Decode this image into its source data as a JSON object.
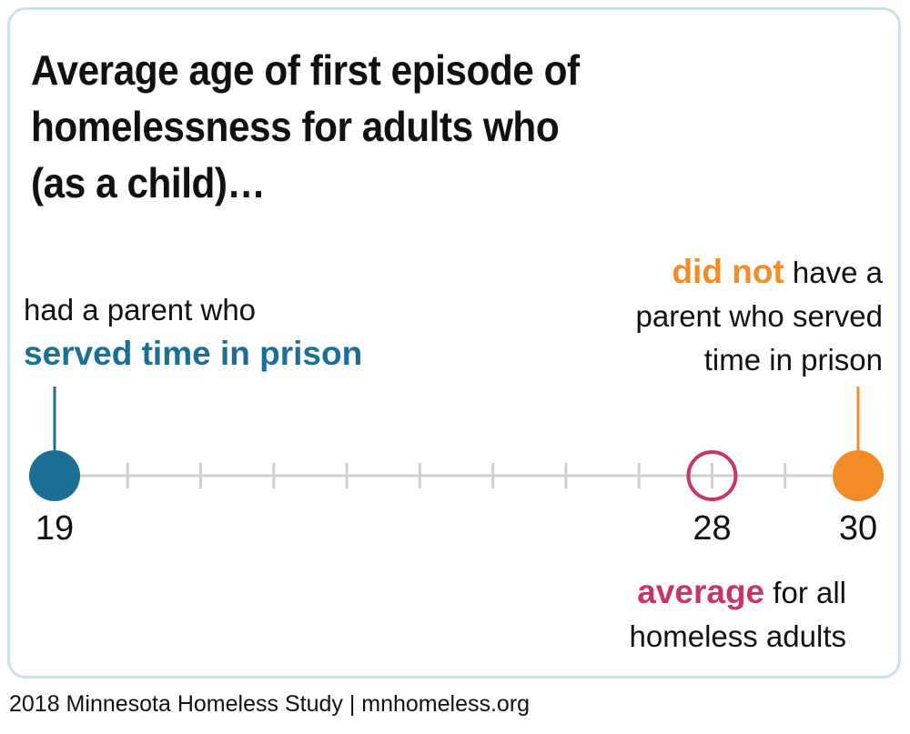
{
  "title_lines": [
    "Average age of first episode of",
    "homelessness for adults who",
    "(as a child)…"
  ],
  "labels": {
    "left_plain": "had a parent who",
    "left_emph": "served time in prison",
    "right_emph": "did not",
    "right_line1_rest": " have a",
    "right_line2": "parent who served",
    "right_line3": "time in prison",
    "avg_emph": "average",
    "avg_line1_rest": " for all",
    "avg_line2": "homeless adults"
  },
  "footer": "2018 Minnesota Homeless Study | mnhomeless.org",
  "colors": {
    "prison": "#1b6f94",
    "no_prison": "#f28c28",
    "average": "#c8356a",
    "axis": "#d0d0d0"
  },
  "chart_data": {
    "type": "scatter",
    "title": "Average age of first episode of homelessness for adults who (as a child)…",
    "xlim": [
      19,
      30
    ],
    "tick_step": 1,
    "tick_labels": [
      "19",
      "28",
      "30"
    ],
    "points": [
      {
        "name": "served time in prison",
        "value": 19,
        "label": "19",
        "style": "filled"
      },
      {
        "name": "average",
        "value": 28,
        "label": "28",
        "style": "hollow"
      },
      {
        "name": "did not",
        "value": 30,
        "label": "30",
        "style": "filled"
      }
    ]
  }
}
